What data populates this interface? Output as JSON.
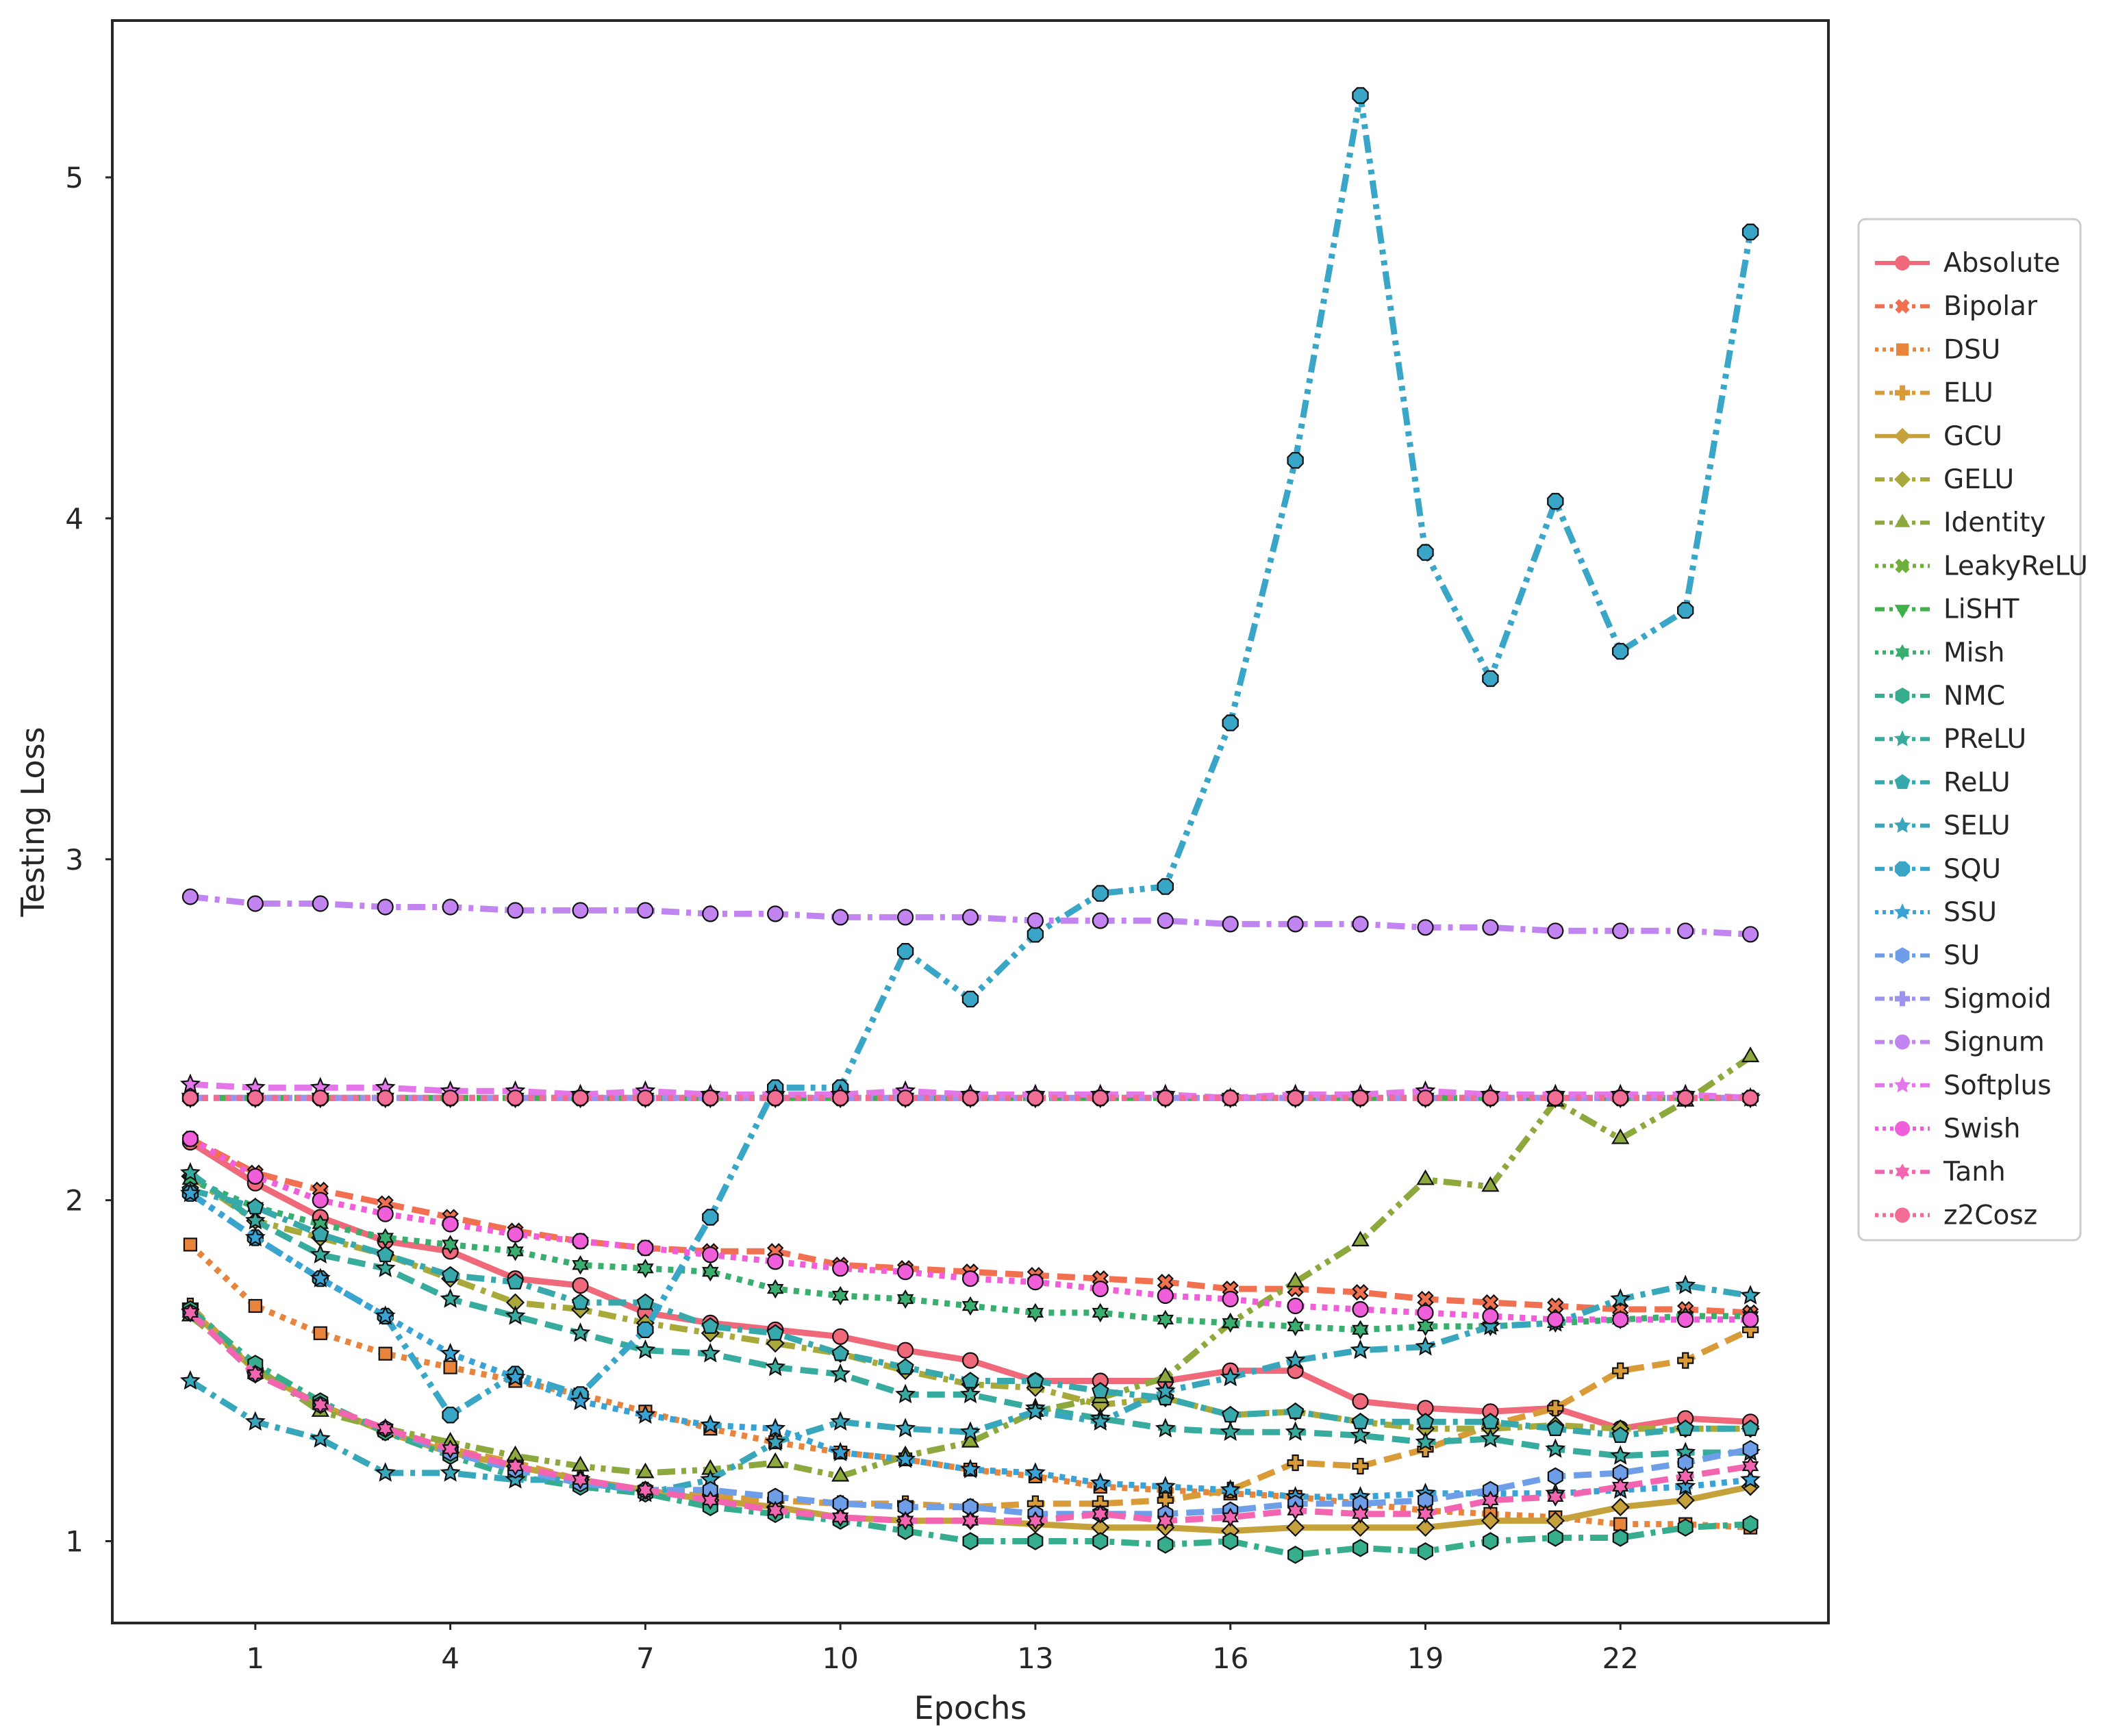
{
  "chart_data": {
    "type": "line",
    "title": "",
    "xlabel": "Epochs",
    "ylabel": "Testing Loss",
    "xlim": [
      -1.2,
      25.2
    ],
    "ylim": [
      0.76,
      5.46
    ],
    "xticks": [
      1,
      4,
      7,
      10,
      13,
      16,
      19,
      22
    ],
    "yticks": [
      1,
      2,
      3,
      4,
      5
    ],
    "grid": false,
    "legend_position": "outside-right",
    "x": [
      0,
      1,
      2,
      3,
      4,
      5,
      6,
      7,
      8,
      9,
      10,
      11,
      12,
      13,
      14,
      15,
      16,
      17,
      18,
      19,
      20,
      21,
      22,
      23,
      24
    ],
    "series": [
      {
        "name": "Absolute",
        "color": "#f0697a",
        "dash": "solid",
        "marker": "circle",
        "values": [
          2.17,
          2.05,
          1.95,
          1.88,
          1.85,
          1.77,
          1.75,
          1.67,
          1.64,
          1.62,
          1.6,
          1.56,
          1.53,
          1.47,
          1.47,
          1.47,
          1.5,
          1.5,
          1.41,
          1.39,
          1.38,
          1.39,
          1.33,
          1.36,
          1.35
        ]
      },
      {
        "name": "Bipolar",
        "color": "#f07050",
        "dash": "dashed",
        "marker": "x",
        "values": [
          2.18,
          2.08,
          2.03,
          1.99,
          1.95,
          1.91,
          1.88,
          1.86,
          1.85,
          1.85,
          1.81,
          1.8,
          1.79,
          1.78,
          1.77,
          1.76,
          1.74,
          1.74,
          1.73,
          1.71,
          1.7,
          1.69,
          1.68,
          1.68,
          1.67
        ]
      },
      {
        "name": "DSU",
        "color": "#e8843c",
        "dash": "dotted",
        "marker": "square",
        "values": [
          1.87,
          1.69,
          1.61,
          1.55,
          1.51,
          1.47,
          1.43,
          1.38,
          1.33,
          1.29,
          1.26,
          1.24,
          1.21,
          1.19,
          1.16,
          1.15,
          1.14,
          1.13,
          1.11,
          1.09,
          1.08,
          1.07,
          1.05,
          1.05,
          1.04
        ]
      },
      {
        "name": "ELU",
        "color": "#d99a38",
        "dash": "dashed",
        "marker": "plus",
        "values": [
          1.69,
          1.5,
          1.4,
          1.32,
          1.27,
          1.23,
          1.18,
          1.15,
          1.13,
          1.12,
          1.11,
          1.11,
          1.1,
          1.11,
          1.11,
          1.12,
          1.15,
          1.23,
          1.22,
          1.27,
          1.34,
          1.39,
          1.5,
          1.53,
          1.62
        ]
      },
      {
        "name": "GCU",
        "color": "#c4a13a",
        "dash": "solid",
        "marker": "diamond",
        "values": [
          1.68,
          1.5,
          1.4,
          1.32,
          1.26,
          1.22,
          1.18,
          1.15,
          1.12,
          1.1,
          1.07,
          1.06,
          1.06,
          1.05,
          1.04,
          1.04,
          1.03,
          1.04,
          1.04,
          1.04,
          1.06,
          1.06,
          1.1,
          1.12,
          1.16
        ]
      },
      {
        "name": "GELU",
        "color": "#a8a93a",
        "dash": "dashdot",
        "marker": "diamond",
        "values": [
          2.07,
          1.94,
          1.89,
          1.84,
          1.77,
          1.7,
          1.68,
          1.64,
          1.61,
          1.58,
          1.55,
          1.5,
          1.46,
          1.45,
          1.4,
          1.42,
          1.37,
          1.38,
          1.35,
          1.33,
          1.33,
          1.34,
          1.33,
          1.33,
          1.33
        ]
      },
      {
        "name": "Identity",
        "color": "#8da83c",
        "dash": "dashdotdot",
        "marker": "triangle",
        "values": [
          1.66,
          1.51,
          1.38,
          1.33,
          1.29,
          1.25,
          1.22,
          1.2,
          1.21,
          1.23,
          1.19,
          1.25,
          1.29,
          1.38,
          1.42,
          1.48,
          1.64,
          1.76,
          1.88,
          2.06,
          2.04,
          2.29,
          2.18,
          2.29,
          2.42
        ]
      },
      {
        "name": "LeakyReLU",
        "color": "#6faf3c",
        "dash": "dotted",
        "marker": "xthick",
        "values": [
          2.3,
          2.3,
          2.3,
          2.3,
          2.3,
          2.3,
          2.3,
          2.3,
          2.3,
          2.3,
          2.3,
          2.3,
          2.3,
          2.3,
          2.3,
          2.3,
          2.3,
          2.3,
          2.3,
          2.3,
          2.3,
          2.3,
          2.3,
          2.3,
          2.3
        ]
      },
      {
        "name": "LiSHT",
        "color": "#3fb14a",
        "dash": "dashed",
        "marker": "triangle-down",
        "values": [
          2.3,
          2.3,
          2.3,
          2.3,
          2.3,
          2.3,
          2.3,
          2.3,
          2.3,
          2.3,
          2.3,
          2.3,
          2.3,
          2.3,
          2.3,
          2.3,
          2.3,
          2.3,
          2.3,
          2.3,
          2.3,
          2.3,
          2.3,
          2.3,
          2.3
        ]
      },
      {
        "name": "Mish",
        "color": "#39ae6f",
        "dash": "dotted",
        "marker": "star6",
        "values": [
          2.06,
          1.98,
          1.93,
          1.89,
          1.87,
          1.85,
          1.81,
          1.8,
          1.79,
          1.74,
          1.72,
          1.71,
          1.69,
          1.67,
          1.67,
          1.65,
          1.64,
          1.63,
          1.62,
          1.63,
          1.63,
          1.64,
          1.65,
          1.66,
          1.66
        ]
      },
      {
        "name": "NMC",
        "color": "#36ad8c",
        "dash": "dashdot",
        "marker": "hexagon",
        "values": [
          1.68,
          1.52,
          1.41,
          1.32,
          1.25,
          1.19,
          1.16,
          1.14,
          1.1,
          1.08,
          1.06,
          1.03,
          1.0,
          1.0,
          1.0,
          0.99,
          1.0,
          0.96,
          0.98,
          0.97,
          1.0,
          1.01,
          1.01,
          1.04,
          1.05
        ]
      },
      {
        "name": "PReLU",
        "color": "#36ab9e",
        "dash": "dashed",
        "marker": "star",
        "values": [
          2.08,
          1.94,
          1.84,
          1.8,
          1.71,
          1.66,
          1.61,
          1.56,
          1.55,
          1.51,
          1.49,
          1.43,
          1.43,
          1.39,
          1.36,
          1.33,
          1.32,
          1.32,
          1.31,
          1.29,
          1.3,
          1.27,
          1.25,
          1.26,
          1.26
        ]
      },
      {
        "name": "ReLU",
        "color": "#37a9ad",
        "dash": "dashdot",
        "marker": "pentagon",
        "values": [
          2.03,
          1.98,
          1.9,
          1.84,
          1.78,
          1.76,
          1.7,
          1.7,
          1.63,
          1.61,
          1.55,
          1.51,
          1.47,
          1.47,
          1.44,
          1.42,
          1.37,
          1.38,
          1.35,
          1.35,
          1.35,
          1.33,
          1.31,
          1.33,
          1.33
        ]
      },
      {
        "name": "SELU",
        "color": "#38a7bb",
        "dash": "dashdot",
        "marker": "star",
        "values": [
          1.47,
          1.35,
          1.3,
          1.2,
          1.2,
          1.18,
          1.18,
          1.14,
          1.18,
          1.29,
          1.35,
          1.33,
          1.32,
          1.38,
          1.35,
          1.44,
          1.48,
          1.53,
          1.56,
          1.57,
          1.63,
          1.64,
          1.71,
          1.75,
          1.72
        ]
      },
      {
        "name": "SQU",
        "color": "#39a6c8",
        "dash": "dashdotdot",
        "marker": "octagon",
        "values": [
          2.02,
          1.89,
          1.77,
          1.66,
          1.37,
          1.49,
          1.43,
          1.62,
          1.95,
          2.33,
          2.33,
          2.73,
          2.59,
          2.78,
          2.9,
          2.92,
          3.4,
          4.17,
          5.24,
          3.9,
          3.53,
          4.05,
          3.61,
          3.73,
          4.84
        ]
      },
      {
        "name": "SSU",
        "color": "#3aa3d6",
        "dash": "dotted",
        "marker": "star",
        "values": [
          2.02,
          1.89,
          1.77,
          1.66,
          1.55,
          1.48,
          1.41,
          1.37,
          1.34,
          1.33,
          1.26,
          1.24,
          1.21,
          1.2,
          1.17,
          1.16,
          1.15,
          1.13,
          1.13,
          1.14,
          1.14,
          1.14,
          1.15,
          1.16,
          1.18
        ]
      },
      {
        "name": "SU",
        "color": "#6f9ee8",
        "dash": "dashed",
        "marker": "hexagon",
        "values": [
          1.67,
          1.49,
          1.4,
          1.33,
          1.26,
          1.21,
          1.17,
          1.15,
          1.15,
          1.13,
          1.11,
          1.1,
          1.1,
          1.08,
          1.08,
          1.08,
          1.09,
          1.11,
          1.11,
          1.12,
          1.15,
          1.19,
          1.2,
          1.23,
          1.27
        ]
      },
      {
        "name": "Sigmoid",
        "color": "#9b93ee",
        "dash": "dashdot",
        "marker": "plus-filled",
        "values": [
          2.3,
          2.3,
          2.3,
          2.3,
          2.3,
          2.3,
          2.3,
          2.3,
          2.3,
          2.3,
          2.3,
          2.3,
          2.3,
          2.3,
          2.3,
          2.3,
          2.3,
          2.3,
          2.3,
          2.3,
          2.3,
          2.3,
          2.3,
          2.3,
          2.3
        ]
      },
      {
        "name": "Signum",
        "color": "#c184f0",
        "dash": "dashdot",
        "marker": "circle",
        "values": [
          2.89,
          2.87,
          2.87,
          2.86,
          2.86,
          2.85,
          2.85,
          2.85,
          2.84,
          2.84,
          2.83,
          2.83,
          2.83,
          2.82,
          2.82,
          2.82,
          2.81,
          2.81,
          2.81,
          2.8,
          2.8,
          2.79,
          2.79,
          2.79,
          2.78
        ]
      },
      {
        "name": "Softplus",
        "color": "#e377ea",
        "dash": "dashed",
        "marker": "star",
        "values": [
          2.34,
          2.33,
          2.33,
          2.33,
          2.32,
          2.32,
          2.31,
          2.32,
          2.31,
          2.31,
          2.31,
          2.32,
          2.31,
          2.31,
          2.31,
          2.31,
          2.3,
          2.31,
          2.31,
          2.32,
          2.31,
          2.31,
          2.31,
          2.31,
          2.3
        ]
      },
      {
        "name": "Swish",
        "color": "#f05ed9",
        "dash": "dotted",
        "marker": "circle",
        "values": [
          2.18,
          2.07,
          2.0,
          1.96,
          1.93,
          1.9,
          1.88,
          1.86,
          1.84,
          1.82,
          1.8,
          1.79,
          1.77,
          1.76,
          1.74,
          1.72,
          1.71,
          1.69,
          1.68,
          1.67,
          1.66,
          1.65,
          1.65,
          1.65,
          1.65
        ]
      },
      {
        "name": "Tanh",
        "color": "#f365b1",
        "dash": "dashed",
        "marker": "star6",
        "values": [
          1.67,
          1.49,
          1.4,
          1.33,
          1.27,
          1.22,
          1.18,
          1.15,
          1.12,
          1.09,
          1.07,
          1.06,
          1.06,
          1.06,
          1.08,
          1.06,
          1.07,
          1.09,
          1.08,
          1.08,
          1.12,
          1.13,
          1.16,
          1.19,
          1.22
        ]
      },
      {
        "name": "z2Cosz",
        "color": "#f26d94",
        "dash": "dotted",
        "marker": "circle",
        "values": [
          2.3,
          2.3,
          2.3,
          2.3,
          2.3,
          2.3,
          2.3,
          2.3,
          2.3,
          2.3,
          2.3,
          2.3,
          2.3,
          2.3,
          2.3,
          2.3,
          2.3,
          2.3,
          2.3,
          2.3,
          2.3,
          2.3,
          2.3,
          2.3,
          2.3
        ]
      }
    ]
  }
}
